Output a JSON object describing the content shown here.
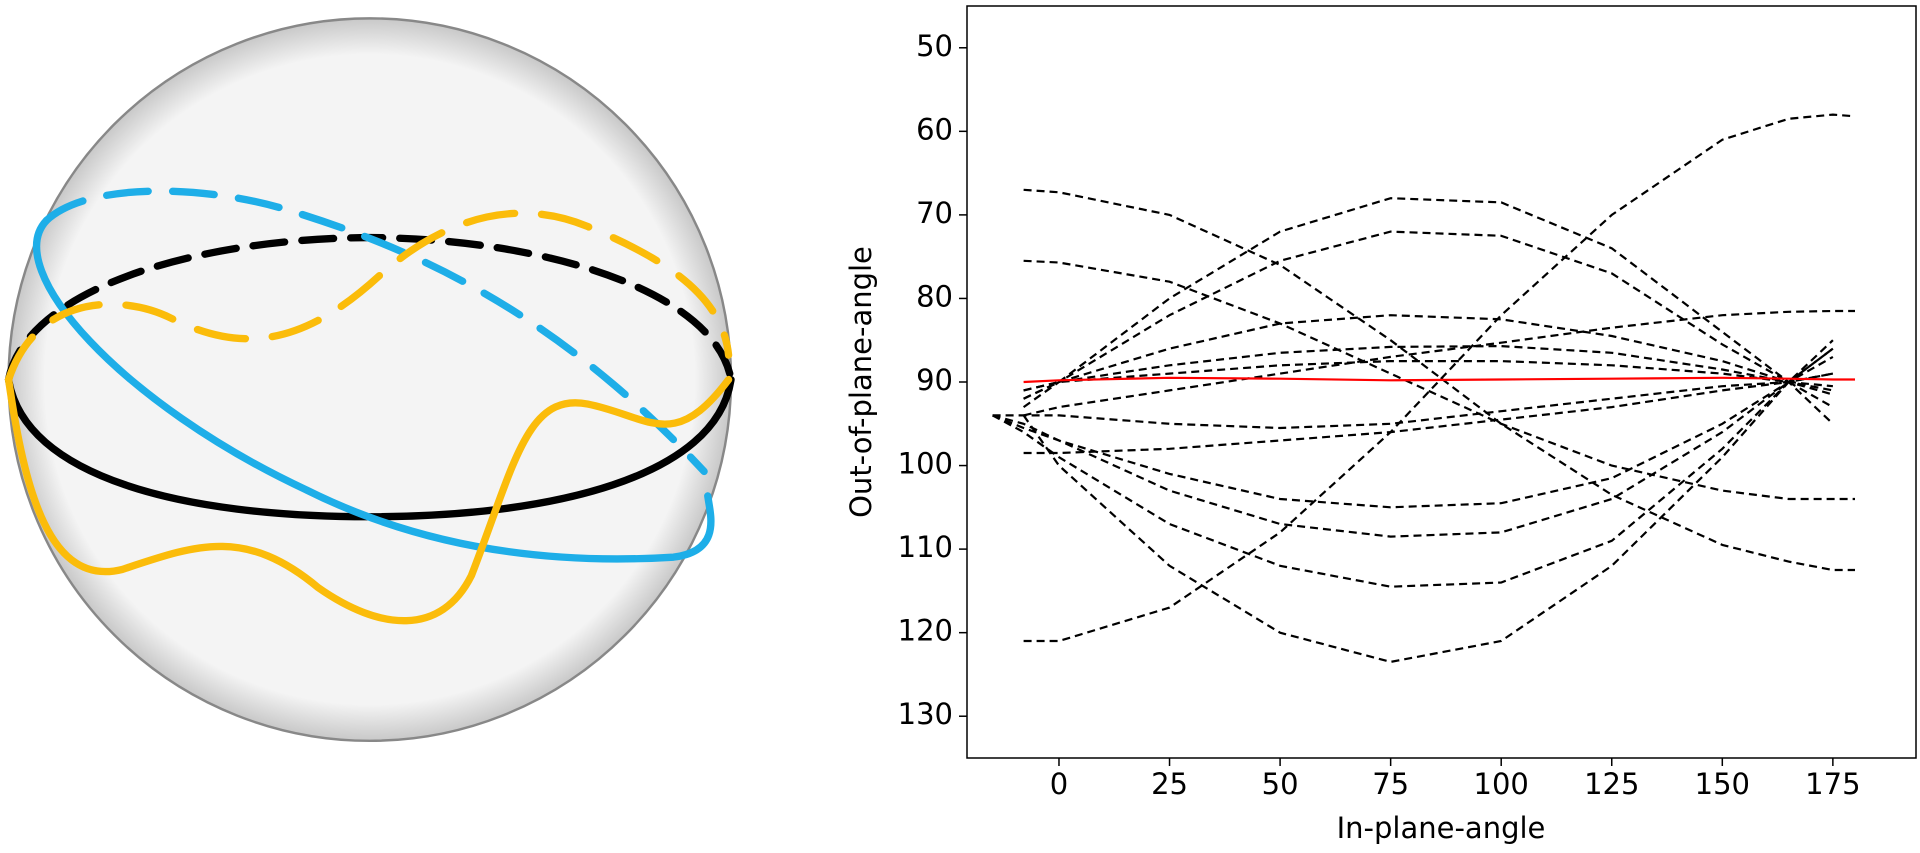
{
  "chart_data": {
    "type": "line",
    "xlabel": "In-plane-angle",
    "ylabel": "Out-of-plane-angle",
    "xlim": [
      -20.8,
      193.8
    ],
    "ylim": [
      135,
      45
    ],
    "xticks": [
      0,
      25,
      50,
      75,
      100,
      125,
      150,
      175
    ],
    "yticks": [
      50,
      60,
      70,
      80,
      90,
      100,
      110,
      120,
      130
    ],
    "x": [
      -15,
      -8,
      0,
      25,
      50,
      75,
      100,
      125,
      150,
      165,
      175,
      180
    ],
    "series": [
      {
        "color": "#000000",
        "dash": true,
        "values": [
          null,
          67,
          67.3,
          70,
          76,
          85,
          95,
          103.5,
          109.5,
          111.5,
          112.5,
          112.5
        ]
      },
      {
        "color": "#000000",
        "dash": true,
        "values": [
          null,
          75.5,
          75.7,
          78,
          83,
          89,
          95,
          100,
          103,
          104,
          104,
          104
        ]
      },
      {
        "color": "#000000",
        "dash": true,
        "values": [
          null,
          121,
          121,
          117,
          108,
          96,
          82,
          70,
          61,
          58.5,
          58,
          58.2
        ]
      },
      {
        "color": "#000000",
        "dash": true,
        "values": [
          null,
          92,
          90,
          80,
          72,
          68,
          68.5,
          74,
          84,
          90,
          95,
          null
        ]
      },
      {
        "color": "#000000",
        "dash": true,
        "values": [
          null,
          93,
          90,
          82,
          75.5,
          72,
          72.5,
          77,
          85.5,
          90,
          93,
          null
        ]
      },
      {
        "color": "#000000",
        "dash": true,
        "values": [
          null,
          92,
          90,
          86,
          83,
          82,
          82.5,
          84.5,
          87.5,
          90,
          91.5,
          null
        ]
      },
      {
        "color": "#000000",
        "dash": true,
        "values": [
          null,
          91,
          90,
          88,
          86.5,
          85.8,
          85.7,
          86.5,
          88.5,
          90,
          91,
          null
        ]
      },
      {
        "color": "#000000",
        "dash": true,
        "values": [
          null,
          91,
          90,
          89,
          88,
          87.5,
          87.5,
          88,
          89,
          90,
          90.5,
          null
        ]
      },
      {
        "color": "#000000",
        "dash": true,
        "values": [
          null,
          94,
          93,
          91,
          89,
          87,
          85.3,
          83.5,
          82,
          81.6,
          81.5,
          81.5
        ]
      },
      {
        "color": "#000000",
        "dash": true,
        "values": [
          94,
          94,
          94,
          95,
          95.5,
          95,
          93.5,
          92,
          90.5,
          90,
          89,
          null
        ]
      },
      {
        "color": "#000000",
        "dash": true,
        "values": [
          null,
          98.5,
          98.5,
          98,
          97,
          96,
          94.5,
          93,
          91,
          90,
          89,
          null
        ]
      },
      {
        "color": "#000000",
        "dash": true,
        "values": [
          94,
          95,
          97,
          101,
          104,
          105,
          104.5,
          101.5,
          95,
          90,
          87,
          null
        ]
      },
      {
        "color": "#000000",
        "dash": true,
        "values": [
          94,
          95.5,
          97,
          103,
          107,
          108.5,
          108,
          104,
          96,
          90,
          86,
          null
        ]
      },
      {
        "color": "#000000",
        "dash": true,
        "values": [
          94,
          96,
          99,
          107,
          112,
          114.5,
          114,
          109,
          98,
          90,
          85,
          null
        ]
      },
      {
        "color": "#000000",
        "dash": true,
        "values": [
          null,
          94,
          100,
          112,
          120,
          123.5,
          121,
          112,
          99,
          90,
          86,
          null
        ]
      },
      {
        "color": "#ff0000",
        "dash": false,
        "values": [
          null,
          90,
          89.8,
          89.5,
          89.6,
          89.8,
          89.7,
          89.6,
          89.5,
          89.6,
          89.7,
          89.7
        ]
      }
    ]
  }
}
